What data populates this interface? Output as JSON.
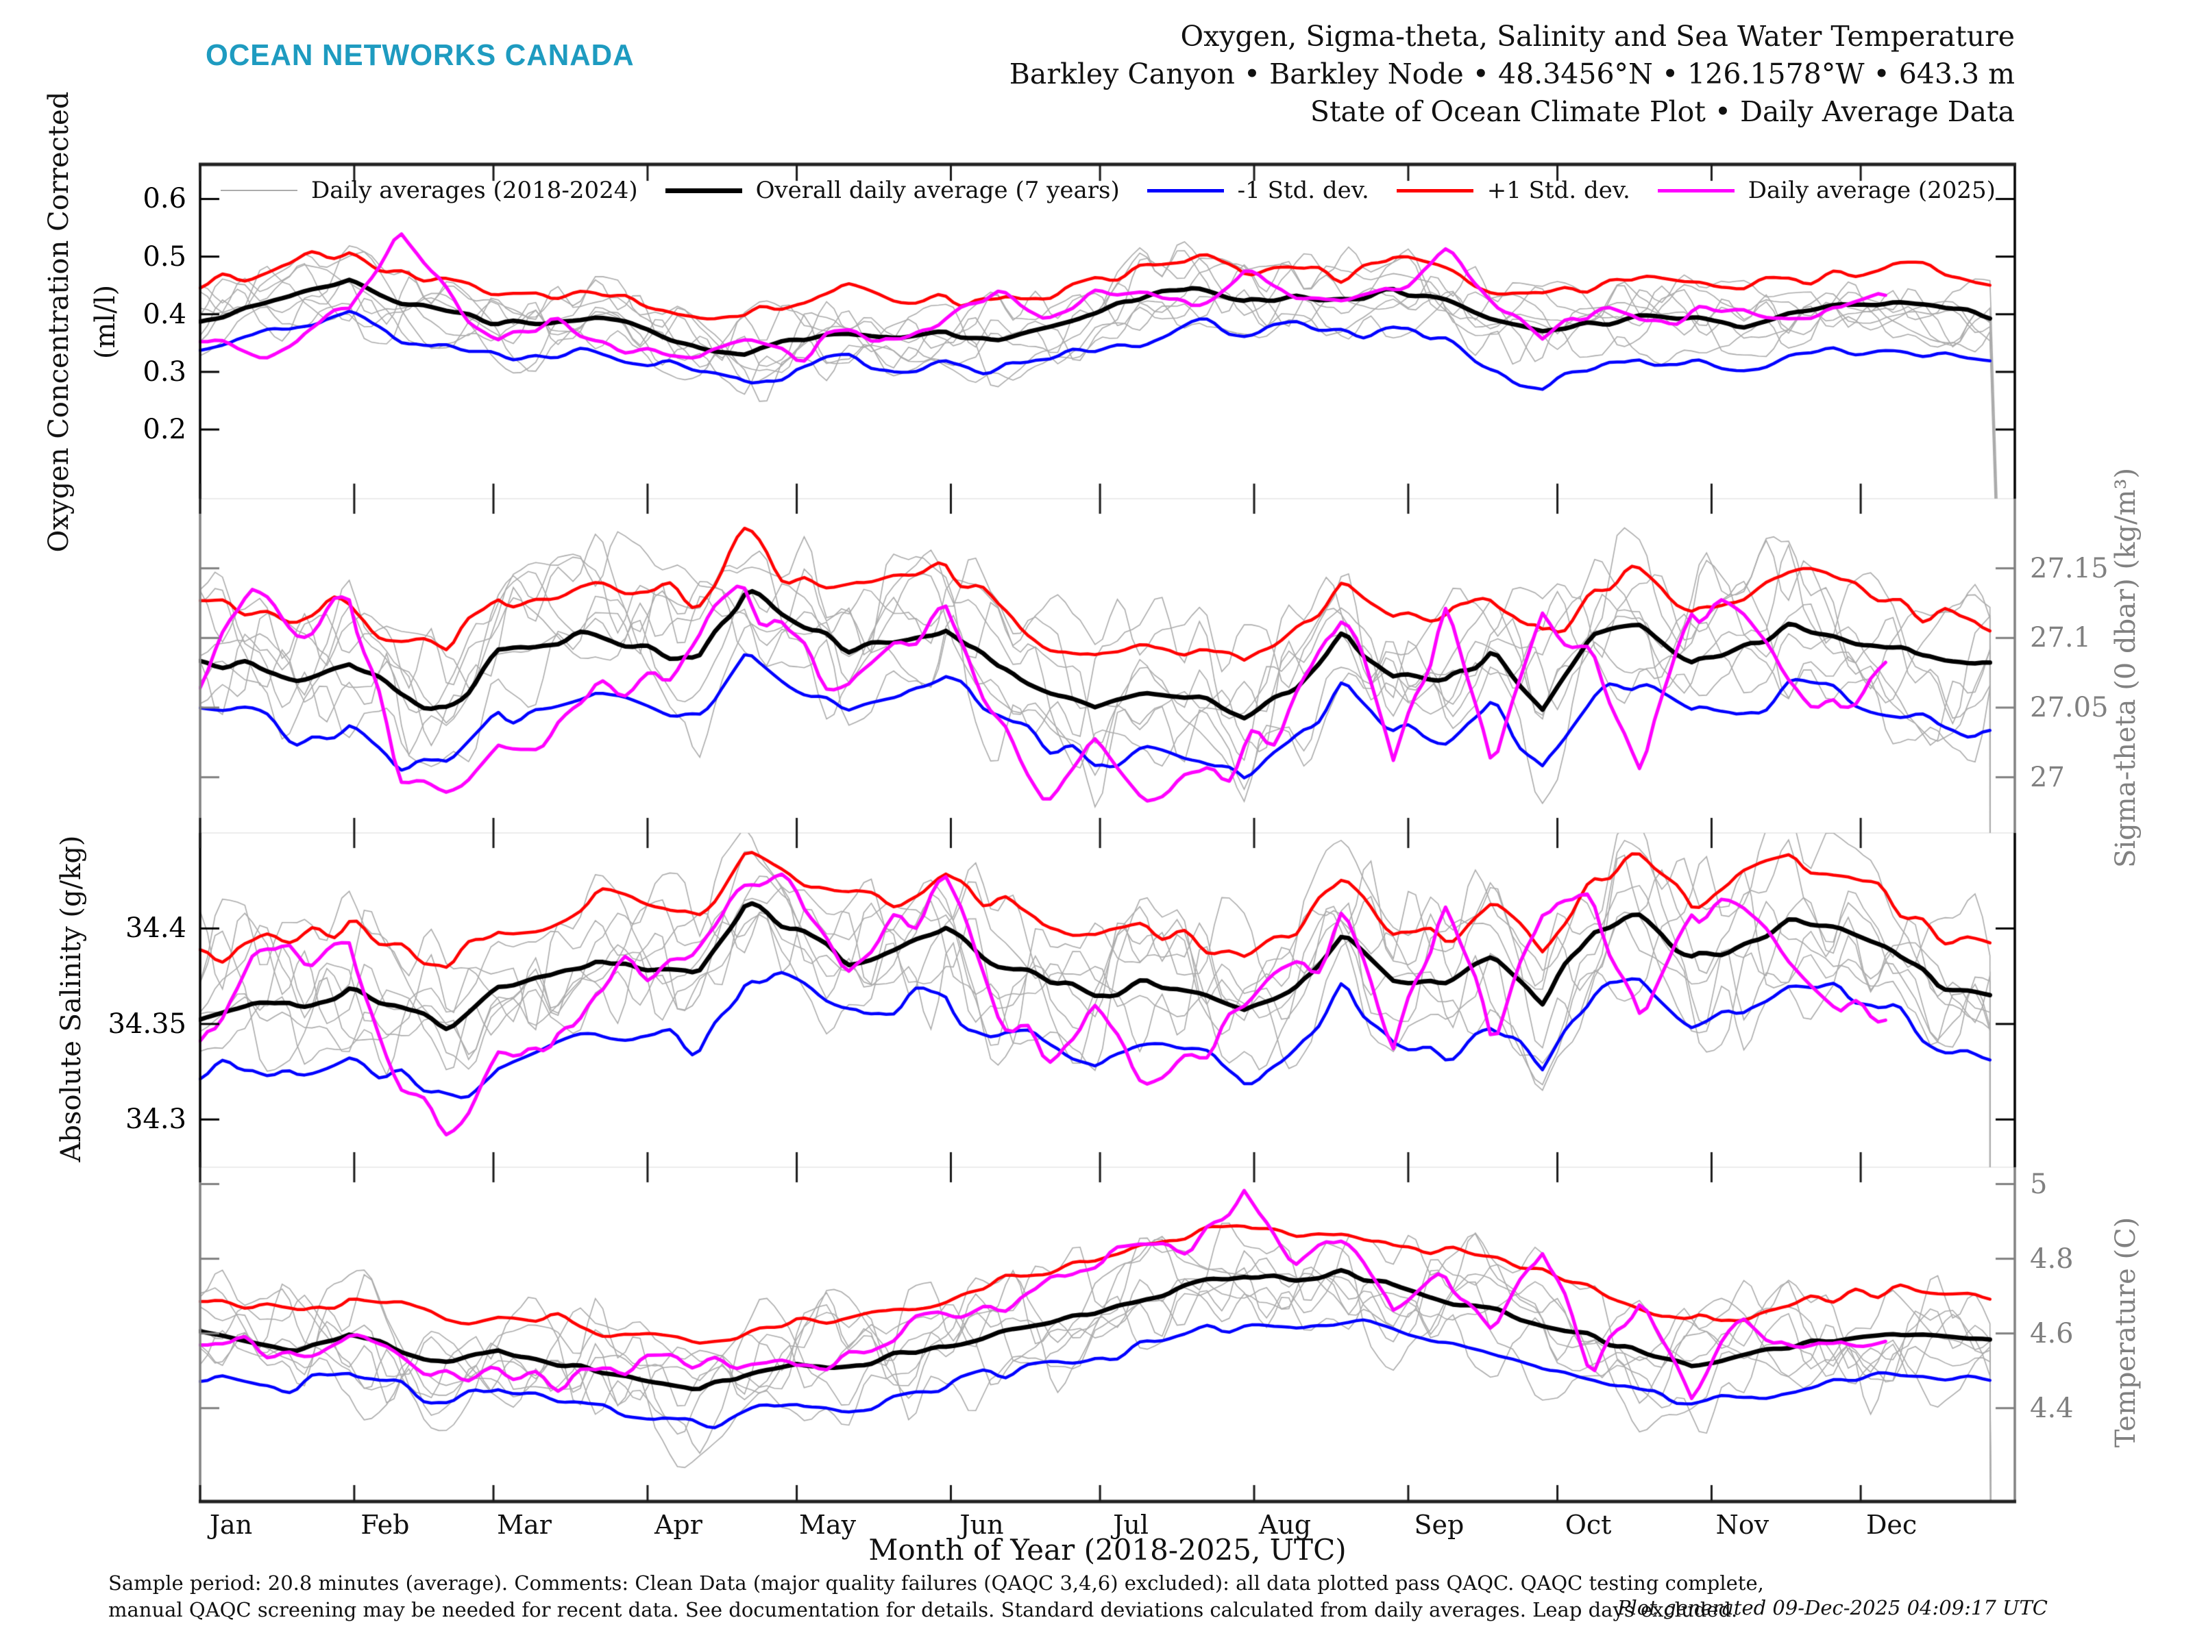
{
  "header": {
    "logo": "OCEAN NETWORKS CANADA",
    "logo_color": "#1E9BC0",
    "title_lines": [
      "Oxygen, Sigma-theta, Salinity and Sea Water Temperature",
      "Barkley Canyon • Barkley Node • 48.3456°N • 126.1578°W • 643.3 m",
      "State of Ocean Climate Plot • Daily Average Data"
    ]
  },
  "legend": [
    {
      "label": "Daily averages (2018-2024)",
      "color": "#ababab",
      "weight": 2
    },
    {
      "label": "Overall daily average (7 years)",
      "color": "#000000",
      "weight": 7
    },
    {
      "label": "-1 Std. dev.",
      "color": "#0000ff",
      "weight": 5
    },
    {
      "label": "+1 Std. dev.",
      "color": "#ff0000",
      "weight": 5
    },
    {
      "label": "Daily average (2025)",
      "color": "#ff00ff",
      "weight": 5
    }
  ],
  "xlabel": "Month of Year (2018-2025, UTC)",
  "footer": {
    "line1": "Sample period: 20.8 minutes (average). Comments: Clean Data (major quality failures (QAQC 3,4,6) excluded): all data plotted pass QAQC. QAQC testing complete,",
    "line2": "manual QAQC screening may be needed for recent data. See documentation for details. Standard deviations calculated from daily averages. Leap days excluded.",
    "generated": "Plot generated 09-Dec-2025 04:09:17 UTC"
  },
  "chart_data": {
    "type": "line",
    "x_unit": "day_of_year",
    "x_range": [
      0,
      365
    ],
    "x_step_days": 10,
    "months": [
      "Jan",
      "Feb",
      "Mar",
      "Apr",
      "May",
      "Jun",
      "Jul",
      "Aug",
      "Sep",
      "Oct",
      "Nov",
      "Dec"
    ],
    "month_start_days": [
      0,
      31,
      59,
      90,
      120,
      151,
      181,
      212,
      243,
      273,
      304,
      334
    ],
    "current_year_end_day": 343,
    "gray_seeds": [
      11,
      23,
      37,
      41,
      53,
      67,
      79
    ],
    "gray_color": "#ababab",
    "legend_position": "top",
    "grid": false,
    "panels": [
      {
        "name": "oxygen",
        "ylabel_outer": "Oxygen Concentration Corrected",
        "ylabel_inner": "(ml/l)",
        "label_side": "left",
        "axis_color": "#000000",
        "tick_label_color": "#000000",
        "ylim": [
          0.08,
          0.66
        ],
        "yticks": [
          {
            "v": 0.6,
            "t": "0.6"
          },
          {
            "v": 0.5,
            "t": "0.5"
          },
          {
            "v": 0.4,
            "t": "0.4"
          },
          {
            "v": 0.3,
            "t": "0.3"
          },
          {
            "v": 0.2,
            "t": "0.2"
          }
        ],
        "gray_amp": 0.068,
        "series": [
          {
            "key": "mean",
            "color": "#000000",
            "width": 6.5,
            "jitter": 0.005,
            "values": [
              0.385,
              0.41,
              0.44,
              0.46,
              0.42,
              0.4,
              0.385,
              0.38,
              0.39,
              0.375,
              0.345,
              0.33,
              0.36,
              0.37,
              0.355,
              0.37,
              0.36,
              0.38,
              0.4,
              0.43,
              0.445,
              0.42,
              0.43,
              0.425,
              0.44,
              0.42,
              0.385,
              0.37,
              0.38,
              0.4,
              0.39,
              0.38,
              0.4,
              0.415,
              0.42,
              0.415,
              0.4
            ]
          },
          {
            "key": "minus_std",
            "color": "#0000ff",
            "width": 4.5,
            "jitter": 0.011,
            "values": [
              0.335,
              0.35,
              0.38,
              0.4,
              0.365,
              0.345,
              0.335,
              0.33,
              0.34,
              0.32,
              0.295,
              0.28,
              0.31,
              0.32,
              0.3,
              0.315,
              0.3,
              0.325,
              0.34,
              0.36,
              0.38,
              0.36,
              0.37,
              0.365,
              0.38,
              0.36,
              0.3,
              0.275,
              0.3,
              0.33,
              0.32,
              0.31,
              0.33,
              0.335,
              0.345,
              0.34,
              0.33
            ]
          },
          {
            "key": "plus_std",
            "color": "#ff0000",
            "width": 4.5,
            "jitter": 0.011,
            "values": [
              0.445,
              0.46,
              0.5,
              0.515,
              0.47,
              0.45,
              0.44,
              0.43,
              0.445,
              0.43,
              0.4,
              0.395,
              0.42,
              0.44,
              0.42,
              0.43,
              0.42,
              0.44,
              0.46,
              0.475,
              0.49,
              0.47,
              0.48,
              0.47,
              0.49,
              0.47,
              0.435,
              0.43,
              0.445,
              0.46,
              0.45,
              0.44,
              0.46,
              0.48,
              0.49,
              0.475,
              0.455
            ]
          },
          {
            "key": "current_2025",
            "color": "#ff00ff",
            "width": 5,
            "jitter": 0.016,
            "values": [
              0.35,
              0.33,
              0.36,
              0.4,
              0.545,
              0.42,
              0.37,
              0.38,
              0.35,
              0.34,
              0.33,
              0.35,
              0.34,
              0.36,
              0.35,
              0.4,
              0.44,
              0.41,
              0.43,
              0.44,
              0.42,
              0.47,
              0.44,
              0.42,
              0.44,
              0.5,
              0.42,
              0.34,
              0.4,
              0.37,
              0.4,
              0.42,
              0.39,
              0.4,
              0.43,
              null,
              null
            ]
          }
        ]
      },
      {
        "name": "sigma_theta",
        "ylabel_outer": "Sigma-theta (0 dbar) (kg/m³)",
        "ylabel_inner": "",
        "label_side": "right",
        "axis_color": "#808080",
        "tick_label_color": "#808080",
        "ylim": [
          26.96,
          27.2
        ],
        "yticks": [
          {
            "v": 27.15,
            "t": "27.15"
          },
          {
            "v": 27.1,
            "t": "27.1"
          },
          {
            "v": 27.05,
            "t": "27.05"
          },
          {
            "v": 27.0,
            "t": "27"
          }
        ],
        "gray_amp": 0.055,
        "series": [
          {
            "key": "mean",
            "color": "#000000",
            "width": 6.5,
            "jitter": 0.004,
            "values": [
              27.085,
              27.08,
              27.07,
              27.08,
              27.06,
              27.05,
              27.09,
              27.095,
              27.1,
              27.09,
              27.08,
              27.135,
              27.11,
              27.09,
              27.1,
              27.11,
              27.08,
              27.065,
              27.05,
              27.06,
              27.055,
              27.04,
              27.06,
              27.1,
              27.07,
              27.065,
              27.09,
              27.05,
              27.1,
              27.105,
              27.08,
              27.09,
              27.11,
              27.1,
              27.09,
              27.085,
              27.08
            ]
          },
          {
            "key": "minus_std",
            "color": "#0000ff",
            "width": 4.5,
            "jitter": 0.008,
            "values": [
              27.045,
              27.04,
              27.02,
              27.035,
              27.01,
              27.0,
              27.045,
              27.05,
              27.06,
              27.05,
              27.04,
              27.095,
              27.07,
              27.05,
              27.06,
              27.065,
              27.04,
              27.02,
              27.005,
              27.02,
              27.01,
              26.995,
              27.02,
              27.06,
              27.03,
              27.02,
              27.05,
              27.01,
              27.06,
              27.065,
              27.04,
              27.05,
              27.07,
              27.06,
              27.05,
              27.04,
              27.035
            ]
          },
          {
            "key": "plus_std",
            "color": "#ff0000",
            "width": 4.5,
            "jitter": 0.008,
            "values": [
              27.12,
              27.115,
              27.11,
              27.12,
              27.1,
              27.09,
              27.125,
              27.13,
              27.14,
              27.13,
              27.12,
              27.17,
              27.145,
              27.13,
              27.14,
              27.145,
              27.12,
              27.1,
              27.09,
              27.1,
              27.095,
              27.08,
              27.1,
              27.135,
              27.11,
              27.105,
              27.13,
              27.1,
              27.14,
              27.14,
              27.12,
              27.13,
              27.15,
              27.14,
              27.13,
              27.12,
              27.115
            ]
          },
          {
            "key": "current_2025",
            "color": "#ff00ff",
            "width": 5,
            "jitter": 0.014,
            "values": [
              27.06,
              27.12,
              27.1,
              27.13,
              27.0,
              26.99,
              27.03,
              27.02,
              27.06,
              27.07,
              27.1,
              27.13,
              27.1,
              27.06,
              27.1,
              27.12,
              27.05,
              27.0,
              27.01,
              26.98,
              26.99,
              27.01,
              27.04,
              27.12,
              27.0,
              27.13,
              27.01,
              27.12,
              27.1,
              27.0,
              27.13,
              27.12,
              27.08,
              27.05,
              27.07,
              null,
              null
            ]
          }
        ]
      },
      {
        "name": "salinity",
        "ylabel_outer": "Absolute Salinity (g/kg)",
        "ylabel_inner": "",
        "label_side": "left",
        "axis_color": "#000000",
        "tick_label_color": "#000000",
        "ylim": [
          34.275,
          34.45
        ],
        "yticks": [
          {
            "v": 34.4,
            "t": "34.4"
          },
          {
            "v": 34.35,
            "t": "34.35"
          },
          {
            "v": 34.3,
            "t": "34.3"
          }
        ],
        "gray_amp": 0.042,
        "series": [
          {
            "key": "mean",
            "color": "#000000",
            "width": 6.5,
            "jitter": 0.003,
            "values": [
              34.355,
              34.365,
              34.36,
              34.37,
              34.36,
              34.35,
              34.37,
              34.375,
              34.385,
              34.38,
              34.375,
              34.415,
              34.4,
              34.385,
              34.39,
              34.4,
              34.38,
              34.375,
              34.365,
              34.37,
              34.365,
              34.355,
              34.365,
              34.4,
              34.375,
              34.37,
              34.385,
              34.365,
              34.4,
              34.405,
              34.385,
              34.39,
              34.405,
              34.4,
              34.39,
              34.37,
              34.365
            ]
          },
          {
            "key": "minus_std",
            "color": "#0000ff",
            "width": 4.5,
            "jitter": 0.006,
            "values": [
              34.325,
              34.33,
              34.325,
              34.335,
              34.325,
              34.31,
              34.335,
              34.34,
              34.35,
              34.345,
              34.34,
              34.38,
              34.365,
              34.35,
              34.355,
              34.365,
              34.345,
              34.34,
              34.33,
              34.335,
              34.33,
              34.32,
              34.33,
              34.365,
              34.34,
              34.335,
              34.35,
              34.325,
              34.365,
              34.37,
              34.35,
              34.355,
              34.37,
              34.365,
              34.355,
              34.335,
              34.33
            ]
          },
          {
            "key": "plus_std",
            "color": "#ff0000",
            "width": 4.5,
            "jitter": 0.006,
            "values": [
              34.385,
              34.39,
              34.39,
              34.4,
              34.39,
              34.38,
              34.4,
              34.405,
              34.415,
              34.41,
              34.4,
              34.44,
              34.425,
              34.41,
              34.415,
              34.425,
              34.41,
              34.4,
              34.395,
              34.4,
              34.395,
              34.385,
              34.395,
              34.425,
              34.4,
              34.4,
              34.415,
              34.395,
              34.425,
              34.43,
              34.41,
              34.42,
              34.43,
              34.425,
              34.415,
              34.4,
              34.39
            ]
          },
          {
            "key": "current_2025",
            "color": "#ff00ff",
            "width": 5,
            "jitter": 0.011,
            "values": [
              34.34,
              34.4,
              34.385,
              34.4,
              34.315,
              34.3,
              34.34,
              34.33,
              34.37,
              34.38,
              34.4,
              34.42,
              34.41,
              34.37,
              34.4,
              34.415,
              34.36,
              34.345,
              34.35,
              34.33,
              34.34,
              34.35,
              34.37,
              34.41,
              34.34,
              34.42,
              34.345,
              34.41,
              34.4,
              34.34,
              34.42,
              34.41,
              34.38,
              34.355,
              34.36,
              null,
              null
            ]
          }
        ]
      },
      {
        "name": "temperature",
        "ylabel_outer": "Temperature (C)",
        "ylabel_inner": "",
        "label_side": "right",
        "axis_color": "#808080",
        "tick_label_color": "#808080",
        "ylim": [
          4.15,
          5.045
        ],
        "yticks": [
          {
            "v": 5.0,
            "t": "5"
          },
          {
            "v": 4.8,
            "t": "4.8"
          },
          {
            "v": 4.6,
            "t": "4.6"
          },
          {
            "v": 4.4,
            "t": "4.4"
          }
        ],
        "gray_amp": 0.155,
        "series": [
          {
            "key": "mean",
            "color": "#000000",
            "width": 6.5,
            "jitter": 0.009,
            "values": [
              4.6,
              4.57,
              4.55,
              4.59,
              4.56,
              4.52,
              4.55,
              4.53,
              4.5,
              4.48,
              4.45,
              4.5,
              4.53,
              4.51,
              4.54,
              4.56,
              4.6,
              4.62,
              4.66,
              4.7,
              4.73,
              4.75,
              4.74,
              4.76,
              4.72,
              4.7,
              4.67,
              4.63,
              4.6,
              4.55,
              4.52,
              4.54,
              4.56,
              4.58,
              4.6,
              4.6,
              4.58
            ]
          },
          {
            "key": "minus_std",
            "color": "#0000ff",
            "width": 4.5,
            "jitter": 0.018,
            "values": [
              4.5,
              4.47,
              4.45,
              4.49,
              4.46,
              4.42,
              4.45,
              4.43,
              4.4,
              4.38,
              4.35,
              4.4,
              4.42,
              4.4,
              4.43,
              4.45,
              4.48,
              4.5,
              4.54,
              4.58,
              4.61,
              4.63,
              4.62,
              4.64,
              4.6,
              4.58,
              4.55,
              4.51,
              4.48,
              4.44,
              4.41,
              4.43,
              4.45,
              4.47,
              4.49,
              4.49,
              4.47
            ]
          },
          {
            "key": "plus_std",
            "color": "#ff0000",
            "width": 4.5,
            "jitter": 0.018,
            "values": [
              4.7,
              4.68,
              4.66,
              4.7,
              4.68,
              4.63,
              4.66,
              4.64,
              4.61,
              4.59,
              4.57,
              4.62,
              4.65,
              4.63,
              4.66,
              4.68,
              4.72,
              4.75,
              4.79,
              4.83,
              4.86,
              4.88,
              4.86,
              4.88,
              4.84,
              4.82,
              4.79,
              4.76,
              4.72,
              4.67,
              4.64,
              4.66,
              4.68,
              4.71,
              4.73,
              4.72,
              4.7
            ]
          },
          {
            "key": "current_2025",
            "color": "#ff00ff",
            "width": 5,
            "jitter": 0.03,
            "values": [
              4.57,
              4.55,
              4.53,
              4.56,
              4.54,
              4.5,
              4.52,
              4.5,
              4.48,
              4.5,
              4.52,
              4.54,
              4.52,
              4.55,
              4.58,
              4.62,
              4.68,
              4.72,
              4.78,
              4.8,
              4.85,
              5.0,
              4.75,
              4.85,
              4.65,
              4.8,
              4.6,
              4.82,
              4.5,
              4.72,
              4.45,
              4.65,
              4.52,
              4.6,
              4.62,
              null,
              null
            ]
          }
        ]
      }
    ]
  }
}
